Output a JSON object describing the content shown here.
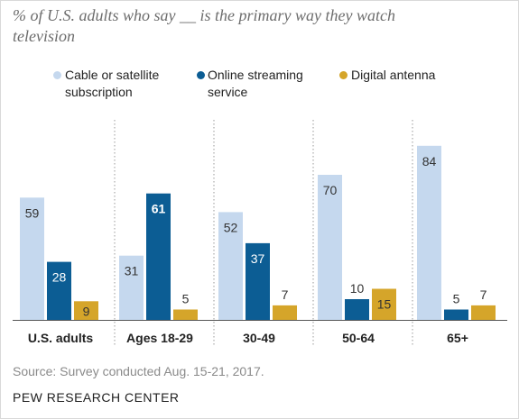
{
  "title": "% of U.S. adults who say __ is the primary way they watch television",
  "legend": [
    {
      "label_line1": "Cable or satellite",
      "label_line2": "subscription"
    },
    {
      "label_line1": "Online streaming",
      "label_line2": "service"
    },
    {
      "label_line1": "Digital antenna",
      "label_line2": ""
    }
  ],
  "source": "Source: Survey conducted Aug. 15-21, 2017.",
  "brand": "PEW RESEARCH CENTER",
  "colors": {
    "cable": "#c5d8ee",
    "streaming": "#0c5d94",
    "antenna": "#d5a52a",
    "label_dark": "#333333",
    "label_light": "#ffffff"
  },
  "chart_data": {
    "type": "bar",
    "categories": [
      "U.S. adults",
      "Ages 18-29",
      "30-49",
      "50-64",
      "65+"
    ],
    "series": [
      {
        "name": "Cable or satellite subscription",
        "values": [
          59,
          31,
          52,
          70,
          84
        ]
      },
      {
        "name": "Online streaming service",
        "values": [
          28,
          61,
          37,
          10,
          5
        ]
      },
      {
        "name": "Digital antenna",
        "values": [
          9,
          5,
          7,
          15,
          7
        ]
      }
    ],
    "ylim": [
      0,
      100
    ],
    "grid": false,
    "legend_position": "top",
    "group_separators": "dotted"
  }
}
